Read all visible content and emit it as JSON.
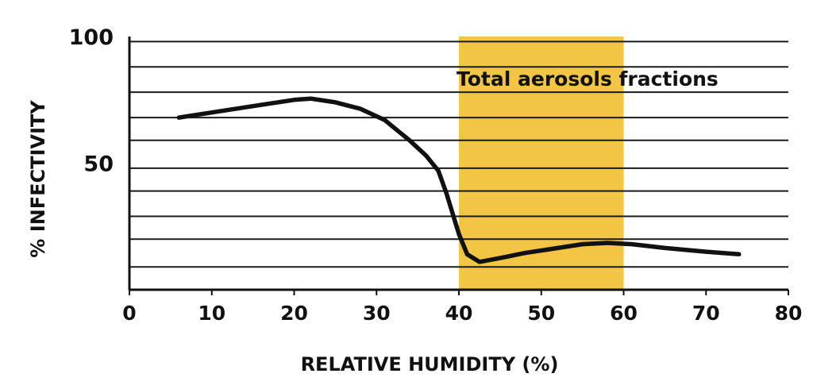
{
  "chart_data": {
    "type": "line",
    "title": "",
    "xlabel": "RELATIVE HUMIDITY (%)",
    "ylabel": "% INFECTIVITY",
    "xlim": [
      0,
      80
    ],
    "ylim": [
      0,
      100
    ],
    "x_ticks": [
      0,
      10,
      20,
      30,
      40,
      50,
      60,
      70,
      80
    ],
    "x_tick_labels": [
      "0",
      "10",
      "20",
      "30",
      "40",
      "50",
      "60",
      "70",
      "80"
    ],
    "y_ticks": [
      50,
      100
    ],
    "y_tick_labels": [
      "50",
      "100"
    ],
    "grid": true,
    "grid_y_values": [
      9,
      20,
      29,
      39,
      48,
      59,
      68,
      78,
      88,
      98
    ],
    "series": [
      {
        "name": "",
        "x": [
          6,
          10,
          15,
          20,
          22,
          25,
          28,
          31,
          34,
          36,
          37.5,
          38.5,
          40,
          41,
          42.5,
          45,
          48,
          51,
          55,
          58,
          61,
          65,
          70,
          74
        ],
        "y": [
          68,
          70,
          72.5,
          75,
          75.5,
          74,
          71.5,
          67,
          59,
          53,
          47,
          38,
          22,
          14,
          11,
          12.5,
          14.5,
          16,
          18,
          18.5,
          18,
          16.5,
          15,
          14
        ]
      }
    ],
    "highlight_band": {
      "x_range": [
        40,
        60
      ],
      "label": "Total aerosols fractions",
      "color": "#F2C544"
    },
    "colors": {
      "line": "#111111",
      "grid": "#1a1a1a",
      "band": "#F2C544"
    }
  }
}
